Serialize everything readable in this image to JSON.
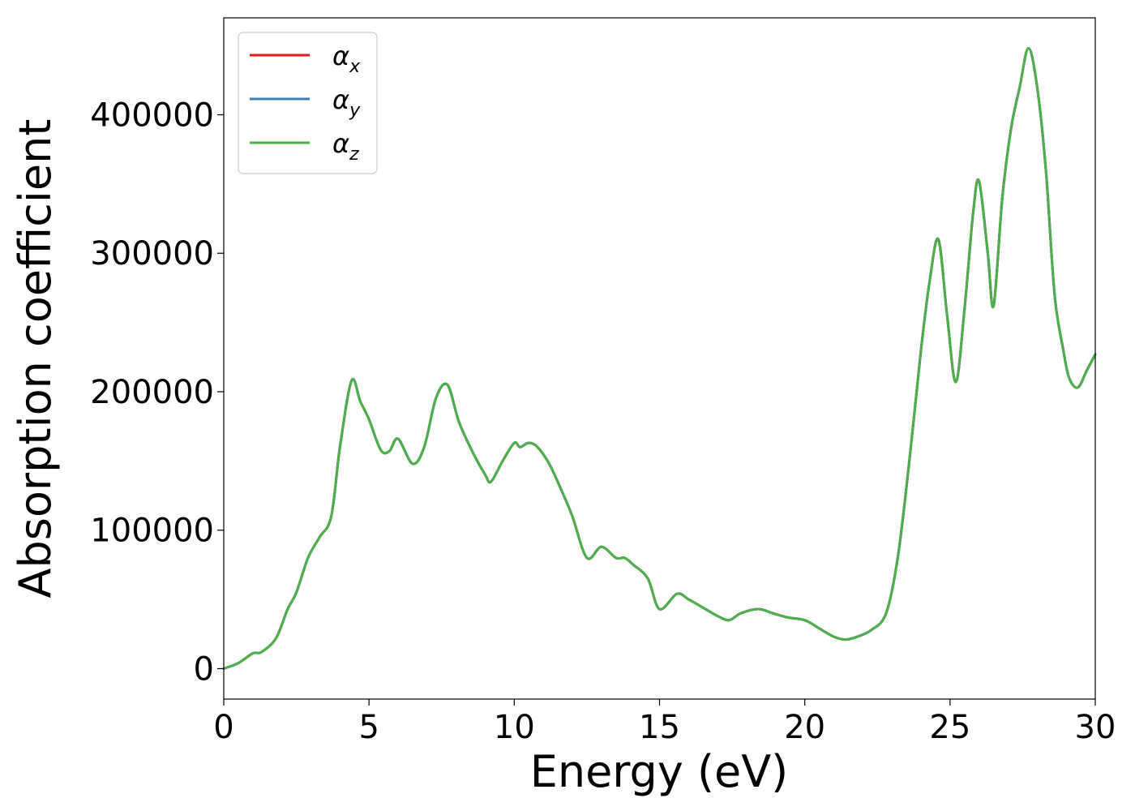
{
  "chart_data": {
    "type": "line",
    "title": "",
    "xlabel": "Energy (eV)",
    "ylabel": "Absorption coefficient",
    "xlim": [
      0,
      30
    ],
    "ylim": [
      -22000,
      470000
    ],
    "xticks": [
      0,
      5,
      10,
      15,
      20,
      25,
      30
    ],
    "yticks": [
      0,
      100000,
      200000,
      300000,
      400000
    ],
    "grid": false,
    "legend_position": "top-left",
    "legend": [
      {
        "symbol": "α",
        "subscript": "x",
        "color": "#e41a1c"
      },
      {
        "symbol": "α",
        "subscript": "y",
        "color": "#377eb8"
      },
      {
        "symbol": "α",
        "subscript": "z",
        "color": "#4daf4a"
      }
    ],
    "x": [
      0,
      0.5,
      1.0,
      1.3,
      1.8,
      2.2,
      2.5,
      2.9,
      3.3,
      3.7,
      4.0,
      4.4,
      4.7,
      5.0,
      5.4,
      5.7,
      6.0,
      6.5,
      6.9,
      7.3,
      7.7,
      8.1,
      8.6,
      9.0,
      9.2,
      9.6,
      10.0,
      10.2,
      10.5,
      10.8,
      11.2,
      11.6,
      12.0,
      12.5,
      13.0,
      13.5,
      13.8,
      14.1,
      14.6,
      15.0,
      15.6,
      16.0,
      16.5,
      17.0,
      17.4,
      17.8,
      18.4,
      18.9,
      19.4,
      20.0,
      20.5,
      21.0,
      21.4,
      21.8,
      22.3,
      22.8,
      23.2,
      23.6,
      24.0,
      24.3,
      24.6,
      24.9,
      25.2,
      25.5,
      25.8,
      26.0,
      26.3,
      26.5,
      26.8,
      27.1,
      27.4,
      27.7,
      28.0,
      28.3,
      28.6,
      28.9,
      29.1,
      29.4,
      29.7,
      30.0
    ],
    "series": [
      {
        "name": "",
        "color": "#e41a1c",
        "values": [
          0,
          4000,
          11000,
          12000,
          22000,
          43000,
          55000,
          80000,
          95000,
          110000,
          160000,
          208000,
          193000,
          180000,
          158000,
          157000,
          166000,
          148000,
          160000,
          195000,
          205000,
          178000,
          155000,
          140000,
          135000,
          150000,
          163000,
          160000,
          163000,
          160000,
          148000,
          130000,
          110000,
          80000,
          88000,
          80000,
          80000,
          75000,
          65000,
          43000,
          54000,
          50000,
          44000,
          38000,
          35000,
          40000,
          43000,
          40000,
          37000,
          35000,
          29000,
          23000,
          21000,
          23000,
          28000,
          40000,
          80000,
          150000,
          230000,
          280000,
          310000,
          255000,
          207000,
          260000,
          330000,
          352000,
          300000,
          262000,
          340000,
          390000,
          420000,
          448000,
          420000,
          360000,
          270000,
          230000,
          210000,
          203000,
          215000,
          227000
        ]
      },
      {
        "name": "",
        "color": "#377eb8",
        "values": [
          0,
          4000,
          11000,
          12000,
          22000,
          43000,
          55000,
          80000,
          95000,
          110000,
          160000,
          208000,
          193000,
          180000,
          158000,
          157000,
          166000,
          148000,
          160000,
          195000,
          205000,
          178000,
          155000,
          140000,
          135000,
          150000,
          163000,
          160000,
          163000,
          160000,
          148000,
          130000,
          110000,
          80000,
          88000,
          80000,
          80000,
          75000,
          65000,
          43000,
          54000,
          50000,
          44000,
          38000,
          35000,
          40000,
          43000,
          40000,
          37000,
          35000,
          29000,
          23000,
          21000,
          23000,
          28000,
          40000,
          80000,
          150000,
          230000,
          280000,
          310000,
          255000,
          207000,
          260000,
          330000,
          352000,
          300000,
          262000,
          340000,
          390000,
          420000,
          448000,
          420000,
          360000,
          270000,
          230000,
          210000,
          203000,
          215000,
          227000
        ]
      },
      {
        "name": "",
        "color": "#4daf4a",
        "values": [
          0,
          4000,
          11000,
          12000,
          22000,
          43000,
          55000,
          80000,
          95000,
          110000,
          160000,
          208000,
          193000,
          180000,
          158000,
          157000,
          166000,
          148000,
          160000,
          195000,
          205000,
          178000,
          155000,
          140000,
          135000,
          150000,
          163000,
          160000,
          163000,
          160000,
          148000,
          130000,
          110000,
          80000,
          88000,
          80000,
          80000,
          75000,
          65000,
          43000,
          54000,
          50000,
          44000,
          38000,
          35000,
          40000,
          43000,
          40000,
          37000,
          35000,
          29000,
          23000,
          21000,
          23000,
          28000,
          40000,
          80000,
          150000,
          230000,
          280000,
          310000,
          255000,
          207000,
          260000,
          330000,
          352000,
          300000,
          262000,
          340000,
          390000,
          420000,
          448000,
          420000,
          360000,
          270000,
          230000,
          210000,
          203000,
          215000,
          227000
        ]
      }
    ]
  }
}
